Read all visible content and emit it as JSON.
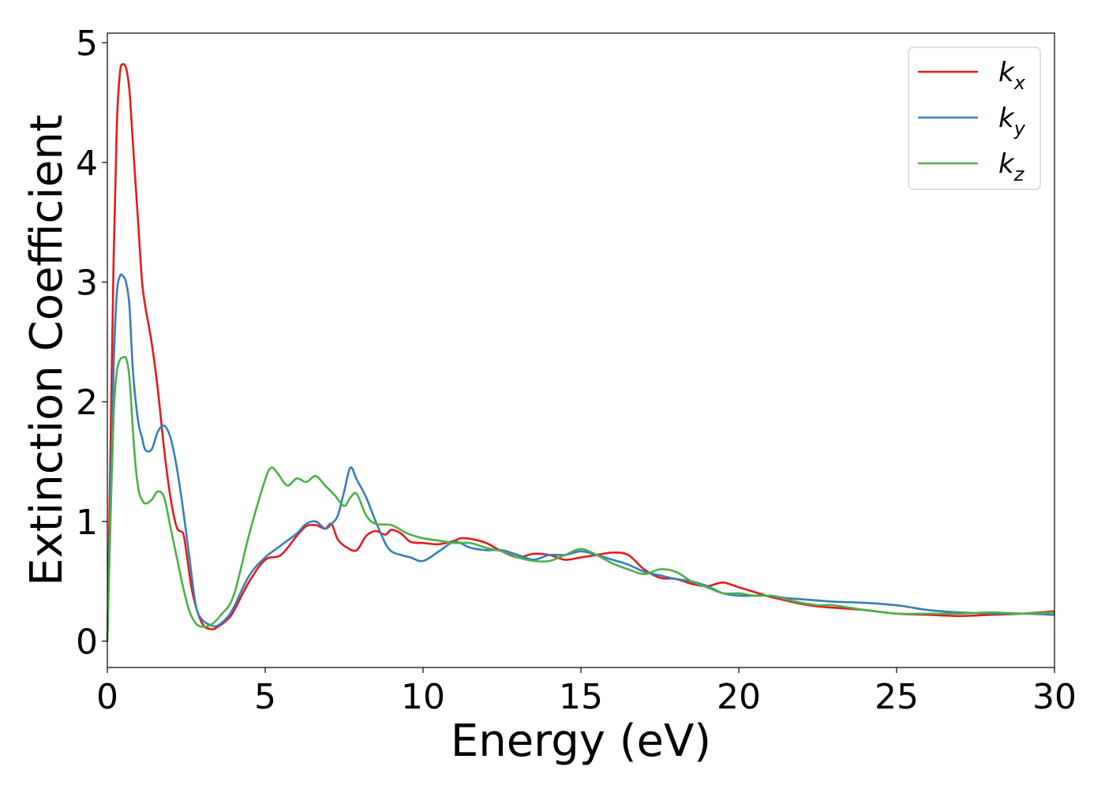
{
  "chart_data": {
    "type": "line",
    "xlabel": "Energy (eV)",
    "ylabel": "Extinction Coefficient",
    "xlim": [
      0,
      30
    ],
    "ylim": [
      -0.22,
      5.08
    ],
    "xticks": [
      "0",
      "5",
      "10",
      "15",
      "20",
      "25",
      "30"
    ],
    "yticks": [
      "0",
      "1",
      "2",
      "3",
      "4",
      "5"
    ],
    "grid": false,
    "legend_position": "top-right",
    "series": [
      {
        "name": "k",
        "subscript": "x",
        "color": "#e41a1c",
        "x": [
          0.0,
          0.1,
          0.2,
          0.3,
          0.4,
          0.5,
          0.6,
          0.7,
          0.8,
          0.9,
          1.0,
          1.1,
          1.2,
          1.4,
          1.6,
          1.8,
          2.0,
          2.2,
          2.4,
          2.5,
          2.7,
          3.0,
          3.3,
          3.5,
          3.8,
          4.0,
          4.5,
          5.0,
          5.5,
          6.0,
          6.3,
          6.6,
          6.9,
          7.1,
          7.3,
          7.6,
          7.9,
          8.2,
          8.5,
          8.8,
          9.0,
          9.3,
          9.6,
          10.0,
          10.5,
          11.0,
          11.2,
          11.6,
          12.0,
          12.5,
          13.0,
          13.5,
          14.0,
          14.5,
          15.0,
          15.5,
          16.0,
          16.5,
          17.0,
          17.5,
          18.0,
          18.5,
          19.0,
          19.5,
          20.0,
          20.5,
          21.0,
          21.5,
          22.0,
          22.5,
          23.0,
          24.0,
          25.0,
          26.0,
          27.0,
          28.0,
          29.0,
          30.0
        ],
        "values": [
          0.0,
          1.6,
          3.2,
          4.3,
          4.75,
          4.82,
          4.78,
          4.6,
          4.2,
          3.8,
          3.4,
          3.0,
          2.8,
          2.5,
          2.1,
          1.6,
          1.2,
          0.95,
          0.9,
          0.75,
          0.4,
          0.15,
          0.1,
          0.12,
          0.18,
          0.25,
          0.5,
          0.68,
          0.72,
          0.88,
          0.96,
          0.97,
          0.94,
          0.98,
          0.85,
          0.78,
          0.76,
          0.88,
          0.92,
          0.89,
          0.93,
          0.9,
          0.83,
          0.82,
          0.81,
          0.84,
          0.86,
          0.85,
          0.82,
          0.75,
          0.7,
          0.73,
          0.72,
          0.68,
          0.7,
          0.72,
          0.74,
          0.72,
          0.6,
          0.53,
          0.52,
          0.48,
          0.46,
          0.49,
          0.45,
          0.41,
          0.37,
          0.34,
          0.31,
          0.29,
          0.28,
          0.26,
          0.23,
          0.22,
          0.21,
          0.22,
          0.23,
          0.25
        ]
      },
      {
        "name": "k",
        "subscript": "y",
        "color": "#377eb8",
        "x": [
          0.0,
          0.1,
          0.2,
          0.3,
          0.4,
          0.5,
          0.6,
          0.7,
          0.8,
          0.9,
          1.0,
          1.1,
          1.2,
          1.4,
          1.6,
          1.8,
          2.0,
          2.2,
          2.4,
          2.6,
          2.8,
          3.0,
          3.3,
          3.5,
          3.8,
          4.0,
          4.5,
          5.0,
          5.5,
          6.0,
          6.3,
          6.6,
          6.9,
          7.1,
          7.3,
          7.5,
          7.7,
          7.9,
          8.2,
          8.5,
          8.8,
          9.0,
          9.3,
          9.6,
          10.0,
          10.5,
          11.0,
          11.5,
          12.0,
          12.5,
          13.0,
          13.5,
          14.0,
          14.5,
          15.0,
          15.5,
          16.0,
          16.5,
          17.0,
          17.5,
          18.0,
          18.5,
          19.0,
          19.5,
          20.0,
          20.5,
          21.0,
          21.5,
          22.0,
          22.5,
          23.0,
          24.0,
          25.0,
          25.5,
          26.0,
          27.0,
          28.0,
          28.5,
          29.0,
          30.0
        ],
        "values": [
          0.0,
          1.2,
          2.3,
          2.9,
          3.05,
          3.05,
          2.99,
          2.8,
          2.3,
          2.0,
          1.8,
          1.7,
          1.6,
          1.6,
          1.75,
          1.8,
          1.7,
          1.45,
          1.1,
          0.7,
          0.3,
          0.18,
          0.13,
          0.13,
          0.2,
          0.28,
          0.55,
          0.7,
          0.8,
          0.9,
          0.98,
          1.0,
          0.94,
          0.98,
          1.05,
          1.25,
          1.45,
          1.35,
          1.2,
          1.0,
          0.82,
          0.75,
          0.72,
          0.7,
          0.67,
          0.75,
          0.83,
          0.78,
          0.76,
          0.76,
          0.72,
          0.68,
          0.72,
          0.72,
          0.75,
          0.72,
          0.68,
          0.64,
          0.58,
          0.55,
          0.52,
          0.5,
          0.46,
          0.4,
          0.38,
          0.38,
          0.38,
          0.36,
          0.35,
          0.34,
          0.33,
          0.32,
          0.3,
          0.28,
          0.26,
          0.24,
          0.23,
          0.23,
          0.23,
          0.22
        ]
      },
      {
        "name": "k",
        "subscript": "z",
        "color": "#4daf4a",
        "x": [
          0.0,
          0.1,
          0.2,
          0.3,
          0.4,
          0.5,
          0.6,
          0.7,
          0.8,
          0.9,
          1.0,
          1.1,
          1.2,
          1.4,
          1.6,
          1.8,
          2.0,
          2.2,
          2.4,
          2.6,
          2.8,
          3.0,
          3.3,
          3.6,
          4.0,
          4.5,
          5.0,
          5.2,
          5.4,
          5.7,
          6.0,
          6.3,
          6.6,
          6.9,
          7.2,
          7.5,
          7.7,
          7.9,
          8.2,
          8.5,
          9.0,
          9.5,
          10.0,
          10.5,
          11.0,
          11.5,
          12.0,
          12.5,
          13.0,
          13.5,
          14.0,
          14.5,
          15.0,
          15.5,
          16.0,
          16.5,
          17.0,
          17.5,
          18.0,
          18.5,
          19.0,
          19.5,
          20.0,
          20.5,
          21.0,
          21.5,
          22.0,
          22.5,
          23.0,
          24.0,
          25.0,
          26.0,
          27.0,
          28.0,
          29.0,
          30.0
        ],
        "values": [
          0.0,
          1.0,
          1.9,
          2.25,
          2.35,
          2.37,
          2.36,
          2.2,
          1.8,
          1.45,
          1.25,
          1.18,
          1.15,
          1.18,
          1.25,
          1.2,
          0.95,
          0.7,
          0.45,
          0.25,
          0.15,
          0.12,
          0.14,
          0.22,
          0.38,
          0.9,
          1.35,
          1.45,
          1.4,
          1.3,
          1.36,
          1.33,
          1.38,
          1.3,
          1.22,
          1.13,
          1.2,
          1.23,
          1.05,
          0.98,
          0.97,
          0.9,
          0.86,
          0.84,
          0.82,
          0.82,
          0.78,
          0.75,
          0.7,
          0.67,
          0.67,
          0.72,
          0.77,
          0.72,
          0.65,
          0.6,
          0.56,
          0.6,
          0.58,
          0.5,
          0.45,
          0.4,
          0.4,
          0.38,
          0.38,
          0.35,
          0.32,
          0.3,
          0.3,
          0.26,
          0.23,
          0.23,
          0.23,
          0.24,
          0.23,
          0.24
        ]
      }
    ]
  }
}
